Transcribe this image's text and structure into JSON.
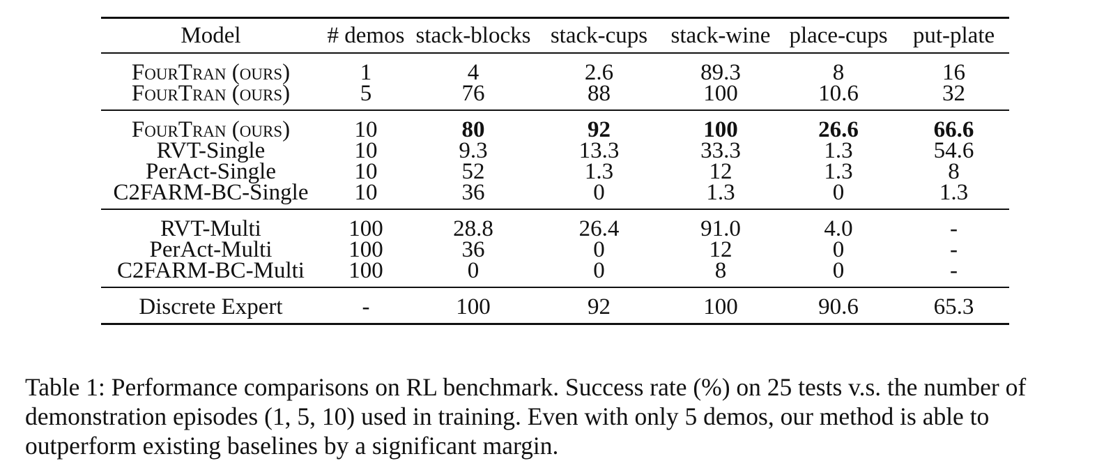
{
  "table": {
    "headers": [
      "Model",
      "# demos",
      "stack-blocks",
      "stack-cups",
      "stack-wine",
      "place-cups",
      "put-plate"
    ],
    "groups": [
      [
        {
          "model": "FourTran (ours)",
          "small_caps": true,
          "cells": [
            "1",
            "4",
            "2.6",
            "89.3",
            "8",
            "16"
          ],
          "bold": []
        },
        {
          "model": "FourTran (ours)",
          "small_caps": true,
          "cells": [
            "5",
            "76",
            "88",
            "100",
            "10.6",
            "32"
          ],
          "bold": []
        }
      ],
      [
        {
          "model": "FourTran (ours)",
          "small_caps": true,
          "cells": [
            "10",
            "80",
            "92",
            "100",
            "26.6",
            "66.6"
          ],
          "bold": [
            1,
            2,
            3,
            4,
            5
          ]
        },
        {
          "model": "RVT-Single",
          "cells": [
            "10",
            "9.3",
            "13.3",
            "33.3",
            "1.3",
            "54.6"
          ],
          "bold": []
        },
        {
          "model": "PerAct-Single",
          "cells": [
            "10",
            "52",
            "1.3",
            "12",
            "1.3",
            "8"
          ],
          "bold": []
        },
        {
          "model": "C2FARM-BC-Single",
          "cells": [
            "10",
            "36",
            "0",
            "1.3",
            "0",
            "1.3"
          ],
          "bold": []
        }
      ],
      [
        {
          "model": "RVT-Multi",
          "cells": [
            "100",
            "28.8",
            "26.4",
            "91.0",
            "4.0",
            "-"
          ],
          "bold": []
        },
        {
          "model": "PerAct-Multi",
          "cells": [
            "100",
            "36",
            "0",
            "12",
            "0",
            "-"
          ],
          "bold": []
        },
        {
          "model": "C2FARM-BC-Multi",
          "cells": [
            "100",
            "0",
            "0",
            "8",
            "0",
            "-"
          ],
          "bold": []
        }
      ],
      [
        {
          "model": "Discrete Expert",
          "cells": [
            "-",
            "100",
            "92",
            "100",
            "90.6",
            "65.3"
          ],
          "bold": []
        }
      ]
    ]
  },
  "caption": "Table 1: Performance comparisons on RL benchmark. Success rate (%) on 25 tests v.s. the number of demonstration episodes (1, 5, 10) used in training. Even with only 5 demos, our method is able to outperform existing baselines by a significant margin."
}
